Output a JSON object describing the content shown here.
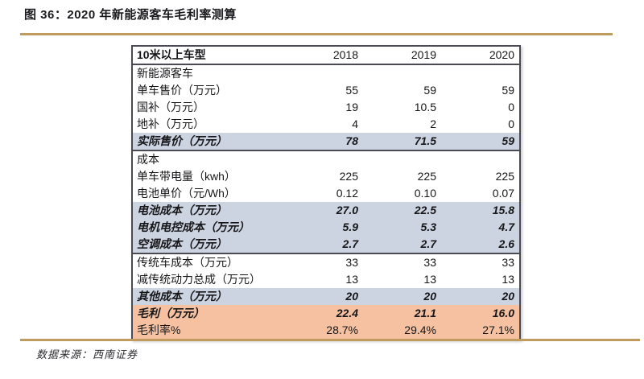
{
  "figure": {
    "title": "图 36：2020 年新能源客车毛利率测算",
    "source": "数据来源：西南证券"
  },
  "chart_data": {
    "type": "table",
    "title": "2020 年新能源客车毛利率测算",
    "columns": [
      "10米以上车型",
      "2018",
      "2019",
      "2020"
    ],
    "rows": [
      {
        "label": "新能源客车",
        "values": [
          "",
          "",
          ""
        ],
        "style": "section"
      },
      {
        "label": "单车售价（万元）",
        "values": [
          "55",
          "59",
          "59"
        ],
        "style": "plain"
      },
      {
        "label": "国补（万元）",
        "values": [
          "19",
          "10.5",
          "0"
        ],
        "style": "plain"
      },
      {
        "label": "地补（万元）",
        "values": [
          "4",
          "2",
          "0"
        ],
        "style": "plain"
      },
      {
        "label": "实际售价（万元）",
        "values": [
          "78",
          "71.5",
          "59"
        ],
        "style": "highlight-gray"
      },
      {
        "label": "成本",
        "values": [
          "",
          "",
          ""
        ],
        "style": "section"
      },
      {
        "label": "单车带电量（kwh）",
        "values": [
          "225",
          "225",
          "225"
        ],
        "style": "plain"
      },
      {
        "label": "电池单价（元/Wh）",
        "values": [
          "0.12",
          "0.10",
          "0.07"
        ],
        "style": "plain"
      },
      {
        "label": "电池成本（万元）",
        "values": [
          "27.0",
          "22.5",
          "15.8"
        ],
        "style": "highlight-gray"
      },
      {
        "label": "电机电控成本（万元）",
        "values": [
          "5.9",
          "5.3",
          "4.7"
        ],
        "style": "highlight-gray"
      },
      {
        "label": "空调成本（万元）",
        "values": [
          "2.7",
          "2.7",
          "2.6"
        ],
        "style": "highlight-gray"
      },
      {
        "label": "传统车成本（万元）",
        "values": [
          "33",
          "33",
          "33"
        ],
        "style": "plain"
      },
      {
        "label": "减传统动力总成（万元）",
        "values": [
          "13",
          "13",
          "13"
        ],
        "style": "plain"
      },
      {
        "label": "其他成本（万元）",
        "values": [
          "20",
          "20",
          "20"
        ],
        "style": "highlight-gray"
      },
      {
        "label": "毛利（万元）",
        "values": [
          "22.4",
          "21.1",
          "16.0"
        ],
        "style": "highlight-orange"
      },
      {
        "label": "毛利率%",
        "values": [
          "28.7%",
          "29.4%",
          "27.1%"
        ],
        "style": "highlight-orange"
      }
    ]
  },
  "colors": {
    "accent_gold": "#bf9c5e",
    "row_gray": "#ccd4e1",
    "row_orange": "#f5c1a0",
    "border_dark": "#4a4a52",
    "text": "#17171a"
  }
}
